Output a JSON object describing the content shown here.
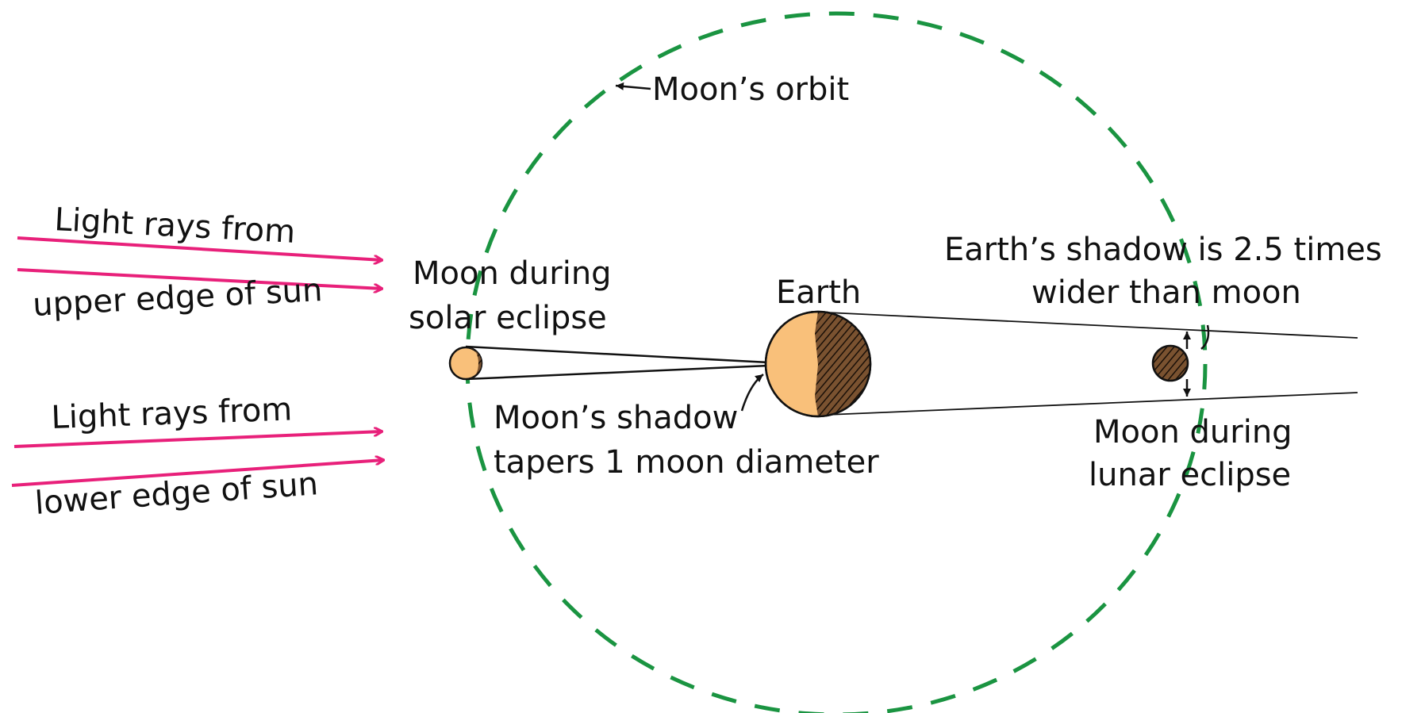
{
  "labels": {
    "orbit": "Moon’s orbit",
    "upper_rays": [
      "Light rays from",
      "upper edge of sun"
    ],
    "lower_rays": [
      "Light rays from",
      "lower edge of sun"
    ],
    "solar_moon": [
      "Moon during",
      "solar eclipse"
    ],
    "earth": "Earth",
    "earth_shadow": [
      "Earth’s shadow is 2.5 times",
      "wider than moon"
    ],
    "moon_shadow": [
      "Moon’s shadow",
      "tapers 1 moon diameter"
    ],
    "lunar_moon": [
      "Moon during",
      "lunar eclipse"
    ]
  }
}
